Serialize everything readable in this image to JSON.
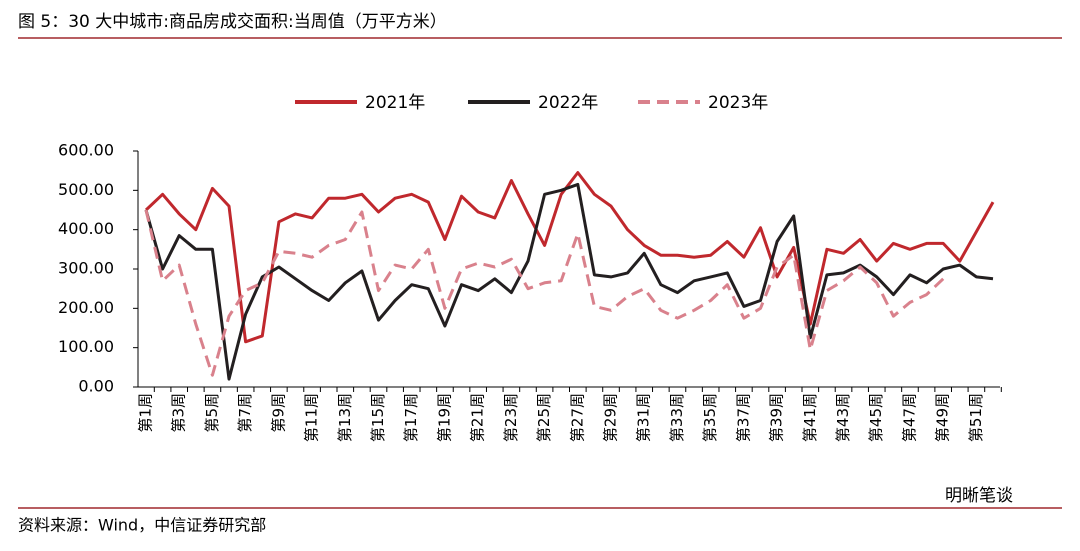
{
  "chart_data": {
    "type": "line",
    "title": "图 5：30 大中城市:商品房成交面积:当周值（万平方米）",
    "source": "资料来源：Wind，中信证券研究部",
    "watermark": "明晰笔谈",
    "categories": [
      "第1周",
      null,
      "第3周",
      null,
      "第5周",
      null,
      "第7周",
      null,
      "第9周",
      null,
      "第11周",
      null,
      "第13周",
      null,
      "第15周",
      null,
      "第17周",
      null,
      "第19周",
      null,
      "第21周",
      null,
      "第23周",
      null,
      "第25周",
      null,
      "第27周",
      null,
      "第29周",
      null,
      "第31周",
      null,
      "第33周",
      null,
      "第35周",
      null,
      "第37周",
      null,
      "第39周",
      null,
      "第41周",
      null,
      "第43周",
      null,
      "第45周",
      null,
      "第47周",
      null,
      "第49周",
      null,
      "第51周",
      null
    ],
    "series": [
      {
        "name": "2021年",
        "color": "#c0282d",
        "dashed": false,
        "values": [
          450,
          490,
          440,
          400,
          505,
          460,
          115,
          130,
          420,
          440,
          430,
          480,
          480,
          490,
          445,
          480,
          490,
          470,
          375,
          485,
          445,
          430,
          525,
          440,
          360,
          490,
          545,
          490,
          460,
          400,
          360,
          335,
          335,
          330,
          335,
          370,
          330,
          405,
          280,
          355,
          160,
          350,
          340,
          375,
          320,
          365,
          350,
          365,
          365,
          320,
          395,
          470
        ]
      },
      {
        "name": "2022年",
        "color": "#231f20",
        "dashed": false,
        "values": [
          450,
          300,
          385,
          350,
          350,
          20,
          185,
          280,
          305,
          275,
          245,
          220,
          265,
          295,
          170,
          220,
          260,
          250,
          155,
          260,
          245,
          275,
          240,
          320,
          490,
          500,
          515,
          285,
          280,
          290,
          340,
          260,
          240,
          270,
          280,
          290,
          205,
          220,
          370,
          435,
          125,
          285,
          290,
          310,
          280,
          235,
          285,
          265,
          300,
          310,
          280,
          275
        ]
      },
      {
        "name": "2023年",
        "color": "#d9818c",
        "dashed": true,
        "values": [
          450,
          270,
          310,
          160,
          30,
          180,
          245,
          265,
          345,
          340,
          330,
          360,
          375,
          445,
          245,
          310,
          300,
          350,
          200,
          300,
          315,
          305,
          325,
          250,
          265,
          270,
          390,
          205,
          195,
          230,
          250,
          195,
          175,
          195,
          220,
          260,
          175,
          200,
          305,
          335,
          95,
          245,
          270,
          305,
          265,
          180,
          215,
          235,
          275,
          null,
          null,
          null
        ]
      }
    ],
    "ylim": [
      0,
      600
    ],
    "yticks": [
      {
        "value": 0,
        "label": "0.00"
      },
      {
        "value": 100,
        "label": "100.00"
      },
      {
        "value": 200,
        "label": "200.00"
      },
      {
        "value": 300,
        "label": "300.00"
      },
      {
        "value": 400,
        "label": "400.00"
      },
      {
        "value": 500,
        "label": "500.00"
      },
      {
        "value": 600,
        "label": "600.00"
      }
    ],
    "legend": "top"
  }
}
